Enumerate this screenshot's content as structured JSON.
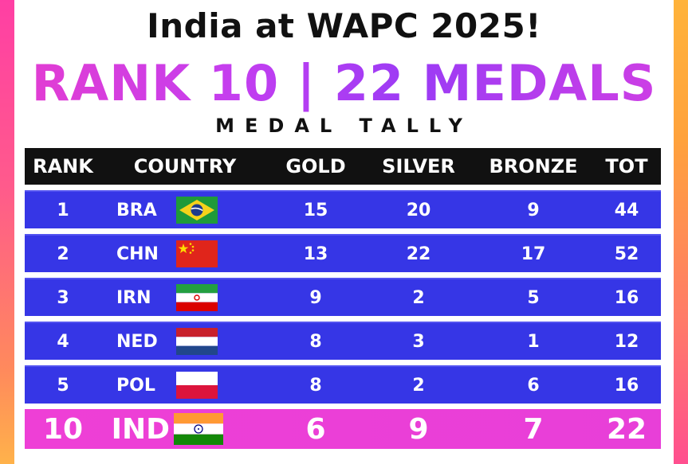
{
  "header": {
    "title": "India at WAPC 2025!",
    "headline": "RANK 10 | 22 MEDALS",
    "subtitle": "MEDAL TALLY"
  },
  "table": {
    "columns": [
      "RANK",
      "COUNTRY",
      "GOLD",
      "SILVER",
      "BRONZE",
      "TOT"
    ],
    "rows": [
      {
        "rank": "1",
        "country": "BRA",
        "flag": "brazil-flag-icon",
        "gold": "15",
        "silver": "20",
        "bronze": "9",
        "tot": "44"
      },
      {
        "rank": "2",
        "country": "CHN",
        "flag": "china-flag-icon",
        "gold": "13",
        "silver": "22",
        "bronze": "17",
        "tot": "52"
      },
      {
        "rank": "3",
        "country": "IRN",
        "flag": "iran-flag-icon",
        "gold": "9",
        "silver": "2",
        "bronze": "5",
        "tot": "16"
      },
      {
        "rank": "4",
        "country": "NED",
        "flag": "netherlands-flag-icon",
        "gold": "8",
        "silver": "3",
        "bronze": "1",
        "tot": "12"
      },
      {
        "rank": "5",
        "country": "POL",
        "flag": "poland-flag-icon",
        "gold": "8",
        "silver": "2",
        "bronze": "6",
        "tot": "16"
      },
      {
        "rank": "10",
        "country": "IND",
        "flag": "india-flag-icon",
        "gold": "6",
        "silver": "9",
        "bronze": "7",
        "tot": "22"
      }
    ]
  },
  "colors": {
    "header_row": "#111111",
    "row_background": "#3636e6",
    "highlight_row": "#ee3fd6",
    "headline_gradient": [
      "#e63dcf",
      "#9b3bf5"
    ],
    "edge_left": "#ff3fa4",
    "edge_right": "#ffb33b"
  }
}
